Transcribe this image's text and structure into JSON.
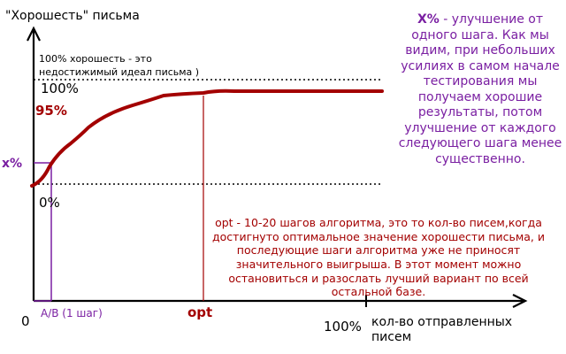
{
  "y_axis_label": "\"Хорошесть\" письма",
  "x_axis_label_line1": "кол-во отправленных",
  "x_axis_label_line2": "писем",
  "ideal_note": "100% хорошесть - это недостижимый идеал письма )",
  "label_100_top": "100%",
  "label_95": "95%",
  "label_0_pct": "0%",
  "label_x_pct": "x%",
  "label_origin": "0",
  "label_ab": "A/B (1 шаг)",
  "label_opt": "opt",
  "label_100_bottom": "100%",
  "x_note_keyword": "X%",
  "x_note_text": " - улучшение от одного шага. Как мы видим, при небольших усилиях в самом начале тестирования мы получаем хорошие результаты, потом улучшение от каждого следующего шага менее существенно.",
  "opt_note": "opt - 10-20 шагов алгоритма, это то кол-во писем,когда достигнуто оптимальное значение хорошести письма, и последующие шаги алгоритма уже не приносят значительного выигрыша. В этот момент можно остановиться и разослать лучший вариант по всей остальной базе.",
  "colors": {
    "curve": "#a30000",
    "step": "#7a1fa2",
    "axis": "#000000",
    "opt": "#a30000"
  }
}
